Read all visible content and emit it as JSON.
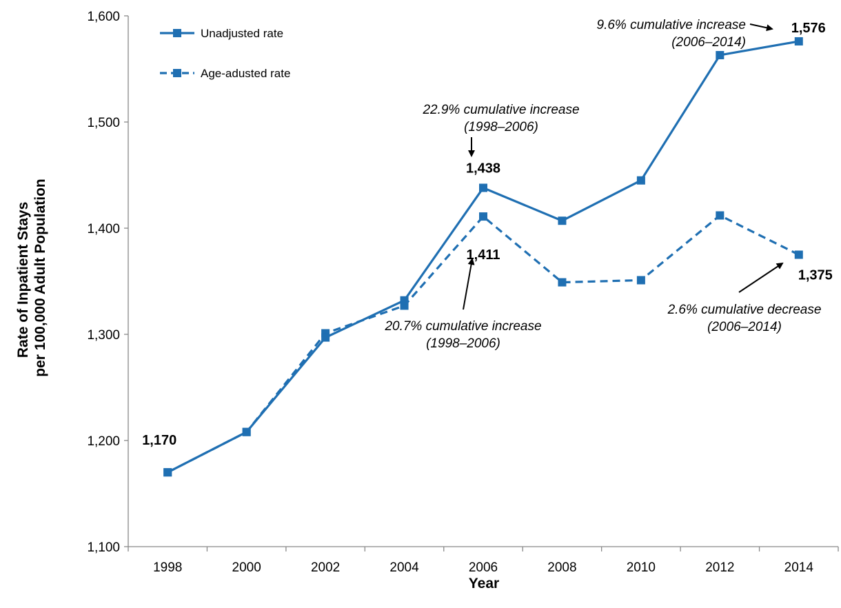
{
  "chart_data": {
    "type": "line",
    "title": "",
    "xlabel": "Year",
    "ylabel_lines": [
      "Rate of Inpatient Stays",
      "per 100,000 Adult Population"
    ],
    "x": [
      "1998",
      "2000",
      "2002",
      "2004",
      "2006",
      "2008",
      "2010",
      "2012",
      "2014"
    ],
    "ylim": [
      1100,
      1600
    ],
    "yticks": [
      1100,
      1200,
      1300,
      1400,
      1500,
      1600
    ],
    "ytick_labels": [
      "1,100",
      "1,200",
      "1,300",
      "1,400",
      "1,500",
      "1,600"
    ],
    "grid": false,
    "legend_position": "top-left",
    "series": [
      {
        "name": "Unadjusted rate",
        "style": "solid",
        "color": "#1F6FB2",
        "values": [
          1170,
          1208,
          1297,
          1332,
          1438,
          1407,
          1445,
          1563,
          1576
        ]
      },
      {
        "name": "Age-adusted rate",
        "style": "dashed",
        "color": "#1F6FB2",
        "values": [
          1170,
          1208,
          1301,
          1327,
          1411,
          1349,
          1351,
          1412,
          1375
        ]
      }
    ],
    "data_labels": [
      {
        "series": 0,
        "index": 0,
        "text": "1,170"
      },
      {
        "series": 0,
        "index": 4,
        "text": "1,438"
      },
      {
        "series": 1,
        "index": 4,
        "text": "1,411"
      },
      {
        "series": 0,
        "index": 8,
        "text": "1,576"
      },
      {
        "series": 1,
        "index": 8,
        "text": "1,375"
      }
    ],
    "annotations": [
      {
        "lines": [
          "9.6% cumulative increase",
          "(2006–2014)"
        ],
        "target": "unadjusted-2014"
      },
      {
        "lines": [
          "22.9% cumulative increase",
          "(1998–2006)"
        ],
        "target": "unadjusted-2006"
      },
      {
        "lines": [
          "20.7% cumulative increase",
          "(1998–2006)"
        ],
        "target": "age-adjusted-2006"
      },
      {
        "lines": [
          "2.6% cumulative decrease",
          "(2006–2014)"
        ],
        "target": "age-adjusted-2014"
      }
    ]
  }
}
